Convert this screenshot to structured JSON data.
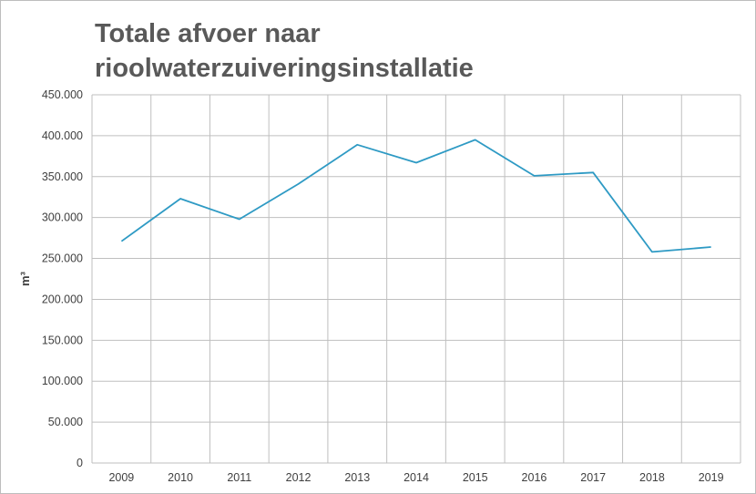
{
  "chart_data": {
    "type": "line",
    "title_lines": [
      "Totale afvoer naar",
      "rioolwaterzuiveringsinstallatie"
    ],
    "xlabel": "",
    "ylabel": "m³",
    "categories": [
      "2009",
      "2010",
      "2011",
      "2012",
      "2013",
      "2014",
      "2015",
      "2016",
      "2017",
      "2018",
      "2019"
    ],
    "series": [
      {
        "values": [
          271000,
          323000,
          298000,
          341000,
          389000,
          367000,
          395000,
          351000,
          355000,
          258000,
          264000
        ]
      }
    ],
    "ylim": [
      0,
      450000
    ],
    "yticks": [
      0,
      50000,
      100000,
      150000,
      200000,
      250000,
      300000,
      350000,
      400000,
      450000
    ],
    "ytick_labels": [
      "0",
      "50.000",
      "100.000",
      "150.000",
      "200.000",
      "250.000",
      "300.000",
      "350.000",
      "400.000",
      "450.000"
    ],
    "grid": true,
    "line_color": "#2e9ac4",
    "grid_color": "#bfbfbf"
  }
}
